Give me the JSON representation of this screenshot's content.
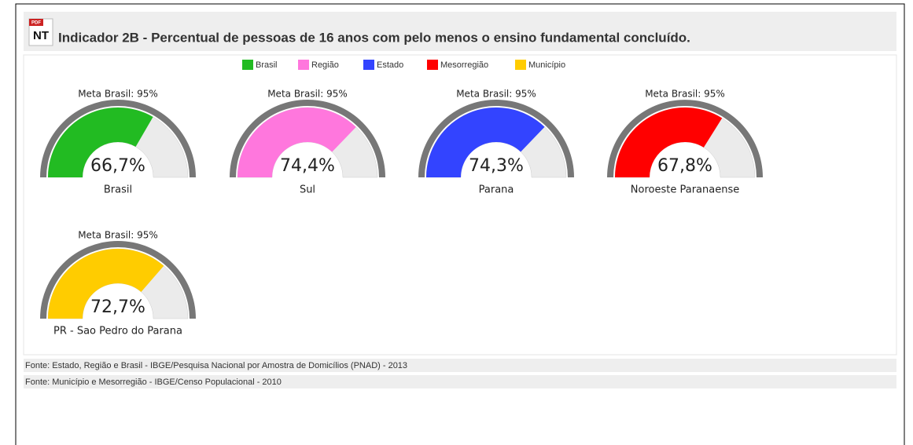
{
  "header": {
    "icon_top": "PDF",
    "icon_label": "NT",
    "title": "Indicador 2B - Percentual de pessoas de 16 anos com pelo menos o ensino fundamental concluído."
  },
  "legend": [
    {
      "name": "Brasil",
      "color": "#22bb22"
    },
    {
      "name": "Região",
      "color": "#ff77dd"
    },
    {
      "name": "Estado",
      "color": "#3344ff"
    },
    {
      "name": "Mesorregião",
      "color": "#ff0000"
    },
    {
      "name": "Município",
      "color": "#ffcc00"
    }
  ],
  "chart_data": [
    {
      "type": "gauge",
      "title": "Meta Brasil: 95%",
      "label": "Brasil",
      "values": [
        66.7
      ],
      "value_labels": [
        "66,7%"
      ],
      "color": "#22bb22",
      "ylim": [
        0,
        100
      ]
    },
    {
      "type": "gauge",
      "title": "Meta Brasil: 95%",
      "label": "Sul",
      "values": [
        74.4
      ],
      "value_labels": [
        "74,4%"
      ],
      "color": "#ff77dd",
      "ylim": [
        0,
        100
      ]
    },
    {
      "type": "gauge",
      "title": "Meta Brasil: 95%",
      "label": "Parana",
      "values": [
        74.3
      ],
      "value_labels": [
        "74,3%"
      ],
      "color": "#3344ff",
      "ylim": [
        0,
        100
      ]
    },
    {
      "type": "gauge",
      "title": "Meta Brasil: 95%",
      "label": "Noroeste Paranaense",
      "values": [
        67.8
      ],
      "value_labels": [
        "67,8%"
      ],
      "color": "#ff0000",
      "ylim": [
        0,
        100
      ]
    },
    {
      "type": "gauge",
      "title": "Meta Brasil: 95%",
      "label": "PR - Sao Pedro do Parana",
      "values": [
        72.7
      ],
      "value_labels": [
        "72,7%"
      ],
      "color": "#ffcc00",
      "ylim": [
        0,
        100
      ]
    }
  ],
  "footer": [
    "Fonte: Estado, Região e Brasil - IBGE/Pesquisa Nacional por Amostra de Domicílios (PNAD) - 2013",
    "Fonte: Município e Mesorregião - IBGE/Censo Populacional - 2010"
  ]
}
